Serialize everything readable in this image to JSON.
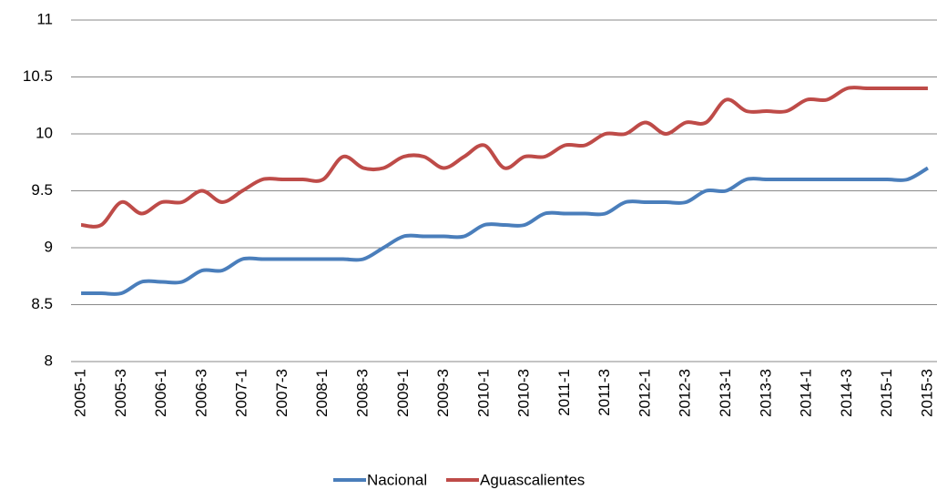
{
  "chart_data": {
    "type": "line",
    "categories": [
      "2005-1",
      null,
      "2005-3",
      null,
      "2006-1",
      null,
      "2006-3",
      null,
      "2007-1",
      null,
      "2007-3",
      null,
      "2008-1",
      null,
      "2008-3",
      null,
      "2009-1",
      null,
      "2009-3",
      null,
      "2010-1",
      null,
      "2010-3",
      null,
      "2011-1",
      null,
      "2011-3",
      null,
      "2012-1",
      null,
      "2012-3",
      null,
      "2013-1",
      null,
      "2013-3",
      null,
      "2014-1",
      null,
      "2014-3",
      null,
      "2015-1",
      null,
      "2015-3"
    ],
    "series": [
      {
        "name": "Nacional",
        "color": "#4a7ebb",
        "values": [
          8.6,
          8.6,
          8.6,
          8.7,
          8.7,
          8.7,
          8.8,
          8.8,
          8.9,
          8.9,
          8.9,
          8.9,
          8.9,
          8.9,
          8.9,
          9.0,
          9.1,
          9.1,
          9.1,
          9.1,
          9.2,
          9.2,
          9.2,
          9.3,
          9.3,
          9.3,
          9.3,
          9.4,
          9.4,
          9.4,
          9.4,
          9.5,
          9.5,
          9.6,
          9.6,
          9.6,
          9.6,
          9.6,
          9.6,
          9.6,
          9.6,
          9.6,
          9.7
        ]
      },
      {
        "name": "Aguascalientes",
        "color": "#be4b48",
        "values": [
          9.2,
          9.2,
          9.4,
          9.3,
          9.4,
          9.4,
          9.5,
          9.4,
          9.5,
          9.6,
          9.6,
          9.6,
          9.6,
          9.8,
          9.7,
          9.7,
          9.8,
          9.8,
          9.7,
          9.8,
          9.9,
          9.7,
          9.8,
          9.8,
          9.9,
          9.9,
          10.0,
          10.0,
          10.1,
          10.0,
          10.1,
          10.1,
          10.3,
          10.2,
          10.2,
          10.2,
          10.3,
          10.3,
          10.4,
          10.4,
          10.4,
          10.4,
          10.4
        ]
      }
    ],
    "ylim": [
      8,
      11
    ],
    "yticks": [
      8,
      8.5,
      9,
      9.5,
      10,
      10.5,
      11
    ],
    "grid": true,
    "legend": "bottom"
  }
}
